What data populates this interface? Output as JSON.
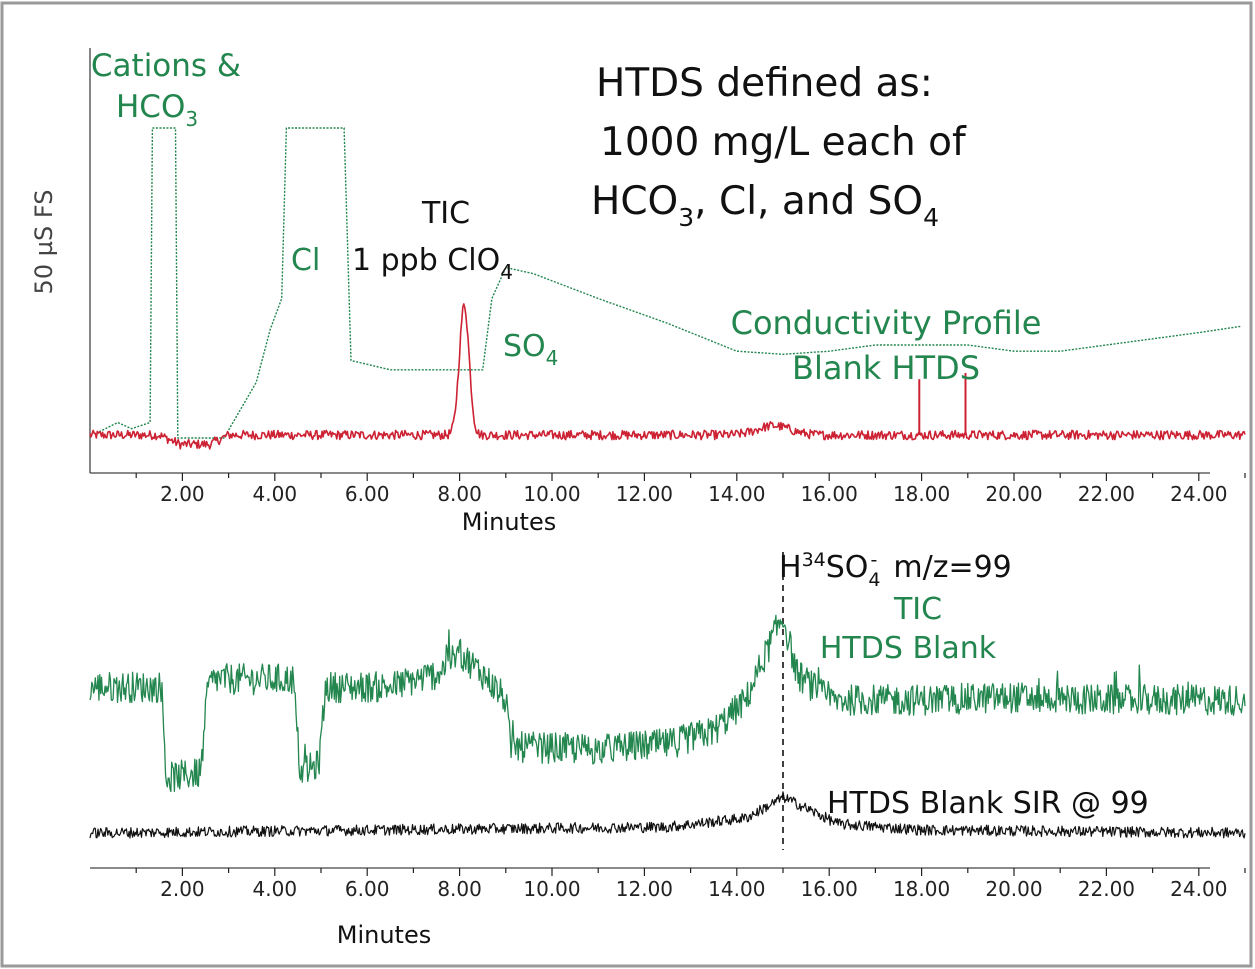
{
  "chart_data": [
    {
      "type": "line",
      "ylabel": "50 µS FS",
      "xlabel": "Minutes",
      "xlim": [
        0,
        25
      ],
      "x_ticks": [
        "2.00",
        "4.00",
        "6.00",
        "8.00",
        "10.00",
        "12.00",
        "14.00",
        "16.00",
        "18.00",
        "20.00",
        "22.00",
        "24.00"
      ],
      "x_tick_values": [
        2,
        4,
        6,
        8,
        10,
        12,
        14,
        16,
        18,
        20,
        22,
        24
      ],
      "text": {
        "cations_line1": "Cations &",
        "cations_line2": "HCO",
        "cations_sub": "3",
        "htds_line1": "HTDS defined as:",
        "htds_line2": "1000 mg/L each of",
        "htds_line3a": "HCO",
        "htds_line3a_sub": "3",
        "htds_line3b": ", Cl, and SO",
        "htds_line3b_sub": "4",
        "tic": "TIC",
        "clo4": "1 ppb ClO",
        "clo4_sub": "4",
        "cl": "Cl",
        "so4": "SO",
        "so4_sub": "4",
        "cond1": "Conductivity Profile",
        "cond2": "Blank HTDS"
      },
      "series": [
        {
          "name": "Conductivity Profile Blank HTDS",
          "color": "#23864e",
          "style": "dotted",
          "points": [
            [
              0.2,
              0.02
            ],
            [
              0.6,
              0.05
            ],
            [
              0.9,
              0.03
            ],
            [
              1.3,
              0.05
            ],
            [
              1.35,
              1.0
            ],
            [
              1.85,
              1.0
            ],
            [
              1.9,
              0.0
            ],
            [
              2.9,
              0.0
            ],
            [
              3.6,
              0.18
            ],
            [
              3.9,
              0.35
            ],
            [
              4.15,
              0.45
            ],
            [
              4.25,
              1.0
            ],
            [
              5.5,
              1.0
            ],
            [
              5.65,
              0.25
            ],
            [
              6.5,
              0.22
            ],
            [
              7.5,
              0.22
            ],
            [
              8.5,
              0.22
            ],
            [
              8.7,
              0.45
            ],
            [
              9.0,
              0.55
            ],
            [
              9.6,
              0.53
            ],
            [
              11.0,
              0.45
            ],
            [
              12.5,
              0.37
            ],
            [
              14.0,
              0.28
            ],
            [
              15.0,
              0.27
            ],
            [
              16.0,
              0.28
            ],
            [
              17.0,
              0.3
            ],
            [
              18.0,
              0.3
            ],
            [
              19.0,
              0.3
            ],
            [
              20.0,
              0.28
            ],
            [
              21.0,
              0.28
            ],
            [
              22.0,
              0.3
            ],
            [
              23.0,
              0.32
            ],
            [
              24.0,
              0.34
            ],
            [
              24.9,
              0.36
            ]
          ]
        },
        {
          "name": "TIC",
          "color": "#cc2233",
          "style": "noisy",
          "baseline": 0.0,
          "noise": 0.015,
          "peaks": [
            [
              8.1,
              0.42,
              0.15
            ],
            [
              14.8,
              0.03,
              0.5
            ]
          ],
          "spikes": [
            [
              17.95,
              0.18
            ],
            [
              18.95,
              0.2
            ]
          ],
          "points": [
            [
              0.0,
              0.0
            ],
            [
              1.5,
              0.0
            ],
            [
              1.95,
              -0.03
            ],
            [
              2.6,
              -0.03
            ],
            [
              3.0,
              0.0
            ],
            [
              25.0,
              0.0
            ]
          ]
        }
      ]
    },
    {
      "type": "line",
      "xlabel": "Minutes",
      "xlim": [
        0,
        25
      ],
      "x_ticks": [
        "2.00",
        "4.00",
        "6.00",
        "8.00",
        "10.00",
        "12.00",
        "14.00",
        "16.00",
        "18.00",
        "20.00",
        "22.00",
        "24.00"
      ],
      "x_tick_values": [
        2,
        4,
        6,
        8,
        10,
        12,
        14,
        16,
        18,
        20,
        22,
        24
      ],
      "marker_x": 15.0,
      "text": {
        "ion_h": "H",
        "ion_sup": "34",
        "ion_so": "SO",
        "ion_sub": "4",
        "ion_charge": "-",
        "ion_mz": "m/z=99",
        "tic": "TIC",
        "tic_blank": "HTDS Blank",
        "sir": "HTDS Blank  SIR @ 99"
      },
      "series": [
        {
          "name": "TIC HTDS Blank",
          "color": "#23864e",
          "style": "noisy",
          "noise": 0.06,
          "points": [
            [
              0.0,
              0.55
            ],
            [
              1.55,
              0.55
            ],
            [
              1.65,
              0.2
            ],
            [
              2.4,
              0.22
            ],
            [
              2.55,
              0.55
            ],
            [
              2.7,
              0.58
            ],
            [
              4.4,
              0.58
            ],
            [
              4.55,
              0.22
            ],
            [
              4.95,
              0.25
            ],
            [
              5.1,
              0.55
            ],
            [
              5.6,
              0.55
            ],
            [
              6.5,
              0.55
            ],
            [
              7.5,
              0.6
            ],
            [
              8.0,
              0.68
            ],
            [
              8.5,
              0.6
            ],
            [
              9.0,
              0.5
            ],
            [
              9.1,
              0.32
            ],
            [
              11.0,
              0.31
            ],
            [
              12.5,
              0.33
            ],
            [
              13.5,
              0.38
            ],
            [
              14.2,
              0.5
            ],
            [
              14.8,
              0.75
            ],
            [
              15.0,
              0.82
            ],
            [
              15.3,
              0.6
            ],
            [
              16.0,
              0.5
            ],
            [
              18.0,
              0.5
            ],
            [
              20.0,
              0.51
            ],
            [
              22.0,
              0.5
            ],
            [
              24.0,
              0.5
            ],
            [
              24.9,
              0.5
            ]
          ]
        },
        {
          "name": "HTDS Blank SIR @ 99",
          "color": "#111111",
          "style": "noisy",
          "noise": 0.018,
          "points": [
            [
              0.0,
              0.0
            ],
            [
              12.5,
              0.02
            ],
            [
              14.2,
              0.05
            ],
            [
              14.8,
              0.1
            ],
            [
              15.0,
              0.12
            ],
            [
              15.4,
              0.09
            ],
            [
              16.2,
              0.03
            ],
            [
              18.0,
              0.01
            ],
            [
              25.0,
              0.0
            ]
          ]
        }
      ]
    }
  ]
}
